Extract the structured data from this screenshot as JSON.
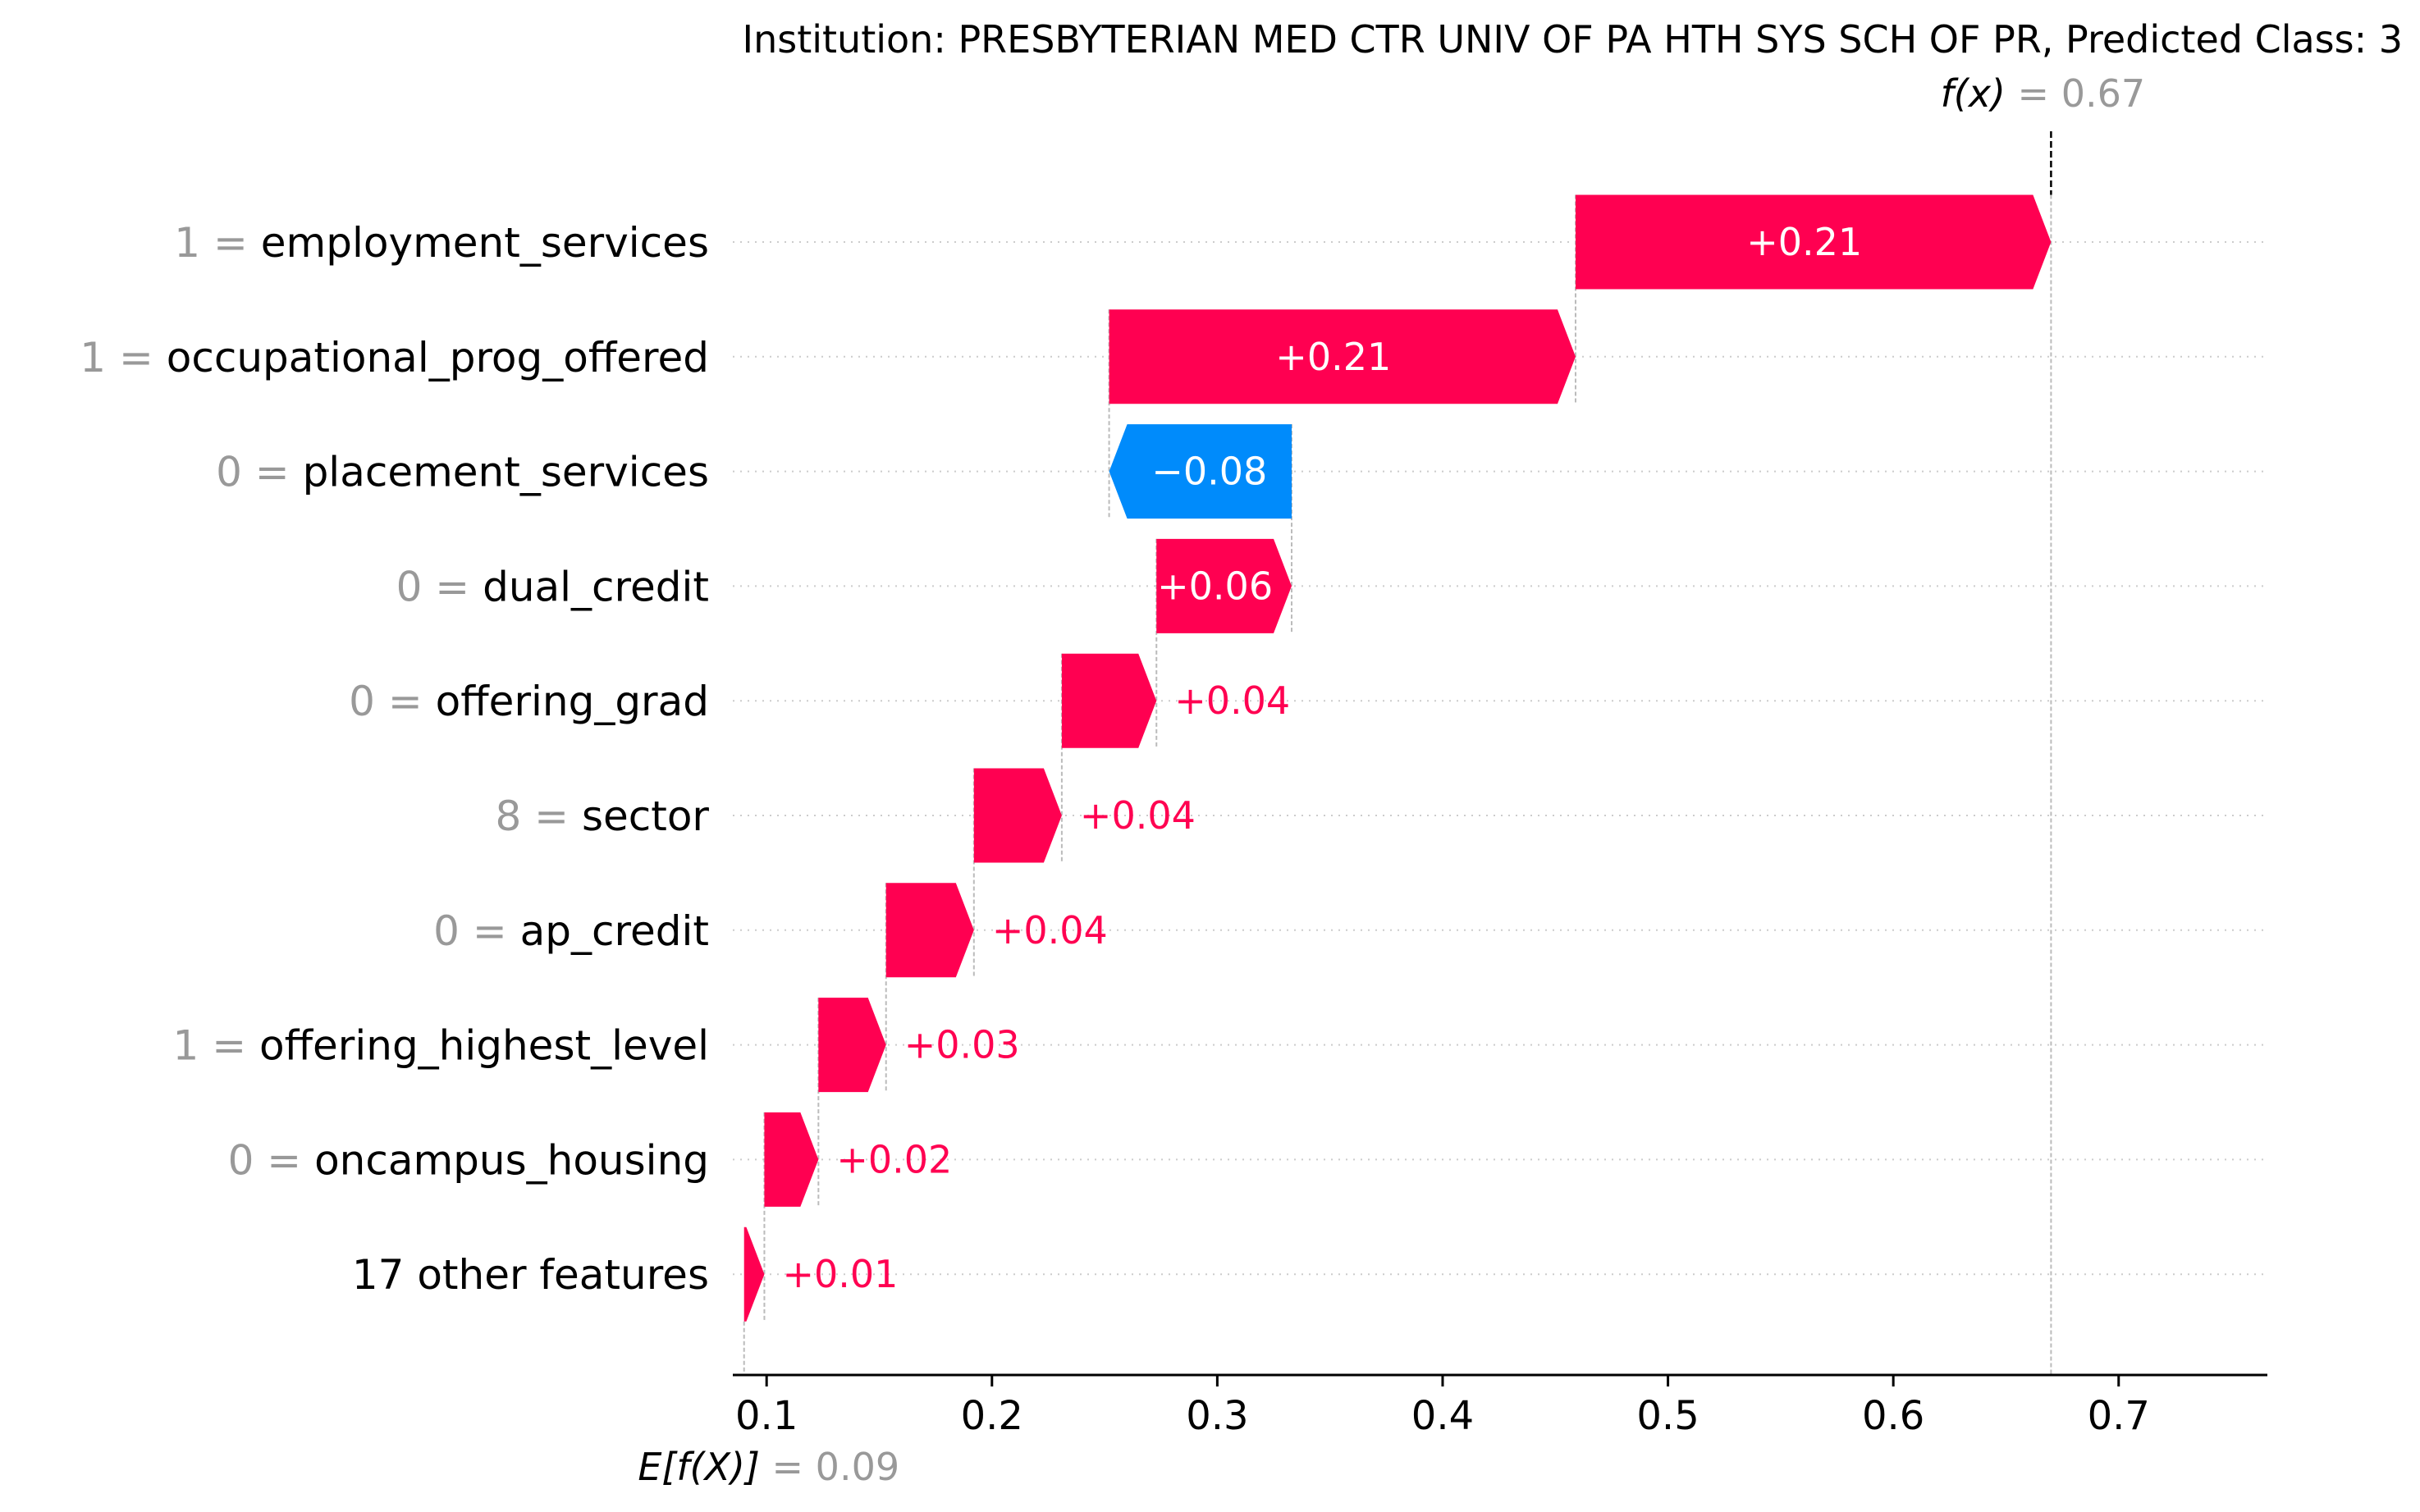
{
  "chart_data": {
    "type": "waterfall",
    "title": "Institution: PRESBYTERIAN MED CTR UNIV OF PA HTH SYS SCH OF PR, Predicted Class: 3",
    "base_value": 0.09,
    "base_label_prefix": "E[f(X)]",
    "base_label_text": "= 0.09",
    "final_value": 0.67,
    "final_label_prefix": "f(x)",
    "final_label_text": "= 0.67",
    "xlim": [
      0.085,
      0.766
    ],
    "xticks": [
      0.1,
      0.2,
      0.3,
      0.4,
      0.5,
      0.6,
      0.7
    ],
    "xtick_labels": [
      "0.1",
      "0.2",
      "0.3",
      "0.4",
      "0.5",
      "0.6",
      "0.7"
    ],
    "grid": "horizontal dotted",
    "colors": {
      "positive": "#ff0051",
      "negative": "#008bfb",
      "axis": "#000000",
      "value_gray": "#999999",
      "grid": "#cccccc"
    },
    "features": [
      {
        "value": "1",
        "name": "employment_services",
        "contribution": 0.21,
        "label": "+0.21",
        "start": 0.459,
        "end": 0.67
      },
      {
        "value": "1",
        "name": "occupational_prog_offered",
        "contribution": 0.21,
        "label": "+0.21",
        "start": 0.252,
        "end": 0.459
      },
      {
        "value": "0",
        "name": "placement_services",
        "contribution": -0.08,
        "label": "−0.08",
        "start": 0.333,
        "end": 0.252
      },
      {
        "value": "0",
        "name": "dual_credit",
        "contribution": 0.06,
        "label": "+0.06",
        "start": 0.273,
        "end": 0.333
      },
      {
        "value": "0",
        "name": "offering_grad",
        "contribution": 0.04,
        "label": "+0.04",
        "start": 0.231,
        "end": 0.273
      },
      {
        "value": "8",
        "name": "sector",
        "contribution": 0.04,
        "label": "+0.04",
        "start": 0.192,
        "end": 0.231
      },
      {
        "value": "0",
        "name": "ap_credit",
        "contribution": 0.04,
        "label": "+0.04",
        "start": 0.153,
        "end": 0.192
      },
      {
        "value": "1",
        "name": "offering_highest_level",
        "contribution": 0.03,
        "label": "+0.03",
        "start": 0.123,
        "end": 0.153
      },
      {
        "value": "0",
        "name": "oncampus_housing",
        "contribution": 0.02,
        "label": "+0.02",
        "start": 0.099,
        "end": 0.123
      },
      {
        "value": "",
        "name": "17 other features",
        "contribution": 0.01,
        "label": "+0.01",
        "start": 0.09,
        "end": 0.099
      }
    ]
  }
}
